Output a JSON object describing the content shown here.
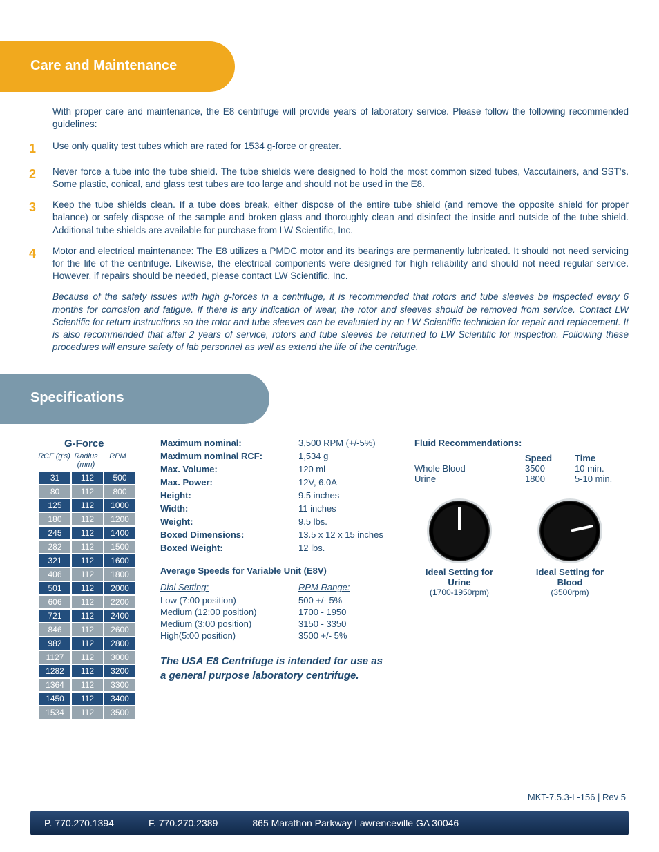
{
  "colors": {
    "brand_text": "#214a70",
    "tab_gold": "#f1a91e",
    "tab_blue": "#7b99ab",
    "table_dark": "#234e7d",
    "table_light": "#97a5af",
    "footer_top": "#2a4a76",
    "footer_bottom": "#102848"
  },
  "section1": {
    "title": "Care and Maintenance",
    "intro": "With proper care and maintenance, the E8 centrifuge will provide years of laboratory service. Please follow the following recommended guidelines:",
    "items": [
      "Use only quality test tubes which are rated for 1534 g-force or greater.",
      "Never force a tube into the tube shield. The tube shields were designed to hold the most common sized tubes, Vaccutainers, and SST's. Some plastic, conical, and glass test tubes are too large and should not be used in the E8.",
      "Keep the tube shields clean. If a tube does break, either dispose of the entire tube shield (and remove the opposite shield for proper balance) or safely dispose of the sample and broken glass and thoroughly clean and disinfect the inside and outside of the tube shield. Additional tube shields are available for purchase from LW Scientific, Inc.",
      "Motor and electrical maintenance: The E8 utilizes a PMDC motor and its bearings are permanently lubricated. It should not need servicing for the life of the centrifuge. Likewise, the electrical components were designed for high reliability and should not need regular service. However, if repairs should be needed, please contact LW Scientific, Inc."
    ],
    "note": "Because of the safety issues with high g-forces in a centrifuge, it is recommended that rotors and tube sleeves be inspected every 6 months for corrosion and fatigue. If there is any indication of wear, the rotor and sleeves should be removed from service. Contact LW Scientific for return instructions so the rotor and tube sleeves can be evaluated by an LW Scientific technician for repair and replacement. It is also recommended that after 2 years of service, rotors and tube sleeves be returned to LW Scientific for inspection. Following these procedures will ensure safety of lab personnel as well as extend the life of the centrifuge."
  },
  "section2_title": "Specifications",
  "gforce": {
    "title": "G-Force",
    "headers": {
      "rcf": "RCF (g's)",
      "radius": "Radius (mm)",
      "rpm": "RPM"
    },
    "rows": [
      {
        "rcf": "31",
        "radius": "112",
        "rpm": "500",
        "shade": "dark"
      },
      {
        "rcf": "80",
        "radius": "112",
        "rpm": "800",
        "shade": "light"
      },
      {
        "rcf": "125",
        "radius": "112",
        "rpm": "1000",
        "shade": "dark"
      },
      {
        "rcf": "180",
        "radius": "112",
        "rpm": "1200",
        "shade": "light"
      },
      {
        "rcf": "245",
        "radius": "112",
        "rpm": "1400",
        "shade": "dark"
      },
      {
        "rcf": "282",
        "radius": "112",
        "rpm": "1500",
        "shade": "light"
      },
      {
        "rcf": "321",
        "radius": "112",
        "rpm": "1600",
        "shade": "dark"
      },
      {
        "rcf": "406",
        "radius": "112",
        "rpm": "1800",
        "shade": "light"
      },
      {
        "rcf": "501",
        "radius": "112",
        "rpm": "2000",
        "shade": "dark"
      },
      {
        "rcf": "606",
        "radius": "112",
        "rpm": "2200",
        "shade": "light"
      },
      {
        "rcf": "721",
        "radius": "112",
        "rpm": "2400",
        "shade": "dark"
      },
      {
        "rcf": "846",
        "radius": "112",
        "rpm": "2600",
        "shade": "light"
      },
      {
        "rcf": "982",
        "radius": "112",
        "rpm": "2800",
        "shade": "dark"
      },
      {
        "rcf": "1127",
        "radius": "112",
        "rpm": "3000",
        "shade": "light"
      },
      {
        "rcf": "1282",
        "radius": "112",
        "rpm": "3200",
        "shade": "dark"
      },
      {
        "rcf": "1364",
        "radius": "112",
        "rpm": "3300",
        "shade": "light"
      },
      {
        "rcf": "1450",
        "radius": "112",
        "rpm": "3400",
        "shade": "dark"
      },
      {
        "rcf": "1534",
        "radius": "112",
        "rpm": "3500",
        "shade": "light"
      }
    ]
  },
  "specs": [
    {
      "label": "Maximum nominal:",
      "value": "3,500 RPM (+/-5%)"
    },
    {
      "label": "Maximum nominal RCF:",
      "value": "1,534 g"
    },
    {
      "label": "Max. Volume:",
      "value": "120 ml"
    },
    {
      "label": "Max. Power:",
      "value": "12V, 6.0A"
    },
    {
      "label": "Height:",
      "value": "9.5 inches"
    },
    {
      "label": "Width:",
      "value": "11 inches"
    },
    {
      "label": "Weight:",
      "value": "9.5 lbs."
    },
    {
      "label": "Boxed Dimensions:",
      "value": "13.5 x 12 x 15 inches"
    },
    {
      "label": "Boxed Weight:",
      "value": "12 lbs."
    }
  ],
  "avg_speeds": {
    "title": "Average Speeds for Variable Unit (E8V)",
    "head_dial": "Dial Setting:",
    "head_rpm": "RPM Range:",
    "rows": [
      {
        "dial": "Low (7:00 position)",
        "rpm": "500 +/- 5%"
      },
      {
        "dial": "Medium (12:00 position)",
        "rpm": "1700 - 1950"
      },
      {
        "dial": "Medium (3:00 position)",
        "rpm": "3150 - 3350"
      },
      {
        "dial": "High(5:00 position)",
        "rpm": "3500 +/- 5%"
      }
    ]
  },
  "statement": "The USA E8 Centrifuge is intended for use as a general purpose laboratory centrifuge.",
  "fluid": {
    "title": "Fluid Recommendations:",
    "head_speed": "Speed",
    "head_time": "Time",
    "rows": [
      {
        "name": "Whole Blood",
        "speed": "3500",
        "time": "10 min."
      },
      {
        "name": "Urine",
        "speed": "1800",
        "time": "5-10 min."
      }
    ]
  },
  "dials": {
    "urine": {
      "title": "Ideal Setting for Urine",
      "sub": "(1700-1950rpm)"
    },
    "blood": {
      "title": "Ideal Setting for Blood",
      "sub": "(3500rpm)"
    }
  },
  "docid": "MKT-7.5.3-L-156 | Rev 5",
  "footer": {
    "phone": "P. 770.270.1394",
    "fax": "F. 770.270.2389",
    "address": "865 Marathon Parkway Lawrenceville GA 30046"
  }
}
